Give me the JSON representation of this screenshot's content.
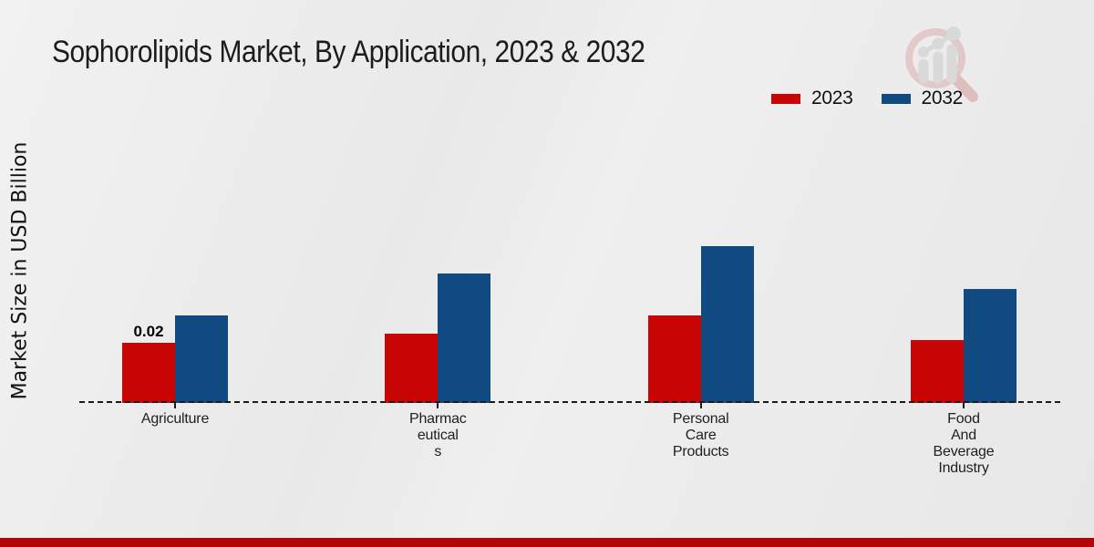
{
  "title": "Sophorolipids Market, By Application, 2023 & 2032",
  "y_axis_title": "Market Size in USD Billion",
  "legend": {
    "items": [
      {
        "label": "2023",
        "color": "#c80606"
      },
      {
        "label": "2032",
        "color": "#114a80"
      }
    ]
  },
  "logo_icon": "magnifier-growth-chart-watermark",
  "footer_color": "#b30707",
  "chart_data": {
    "type": "bar",
    "title": "Sophorolipids Market, By Application, 2023 & 2032",
    "xlabel": "",
    "ylabel": "Market Size in USD Billion",
    "categories": [
      "Agriculture",
      "Pharmaceuticals",
      "Personal Care Products",
      "Food And Beverage Industry"
    ],
    "category_label_lines": [
      [
        "Agriculture"
      ],
      [
        "Pharmac",
        "eutical",
        "s"
      ],
      [
        "Personal",
        "Care",
        "Products"
      ],
      [
        "Food",
        "And",
        "Beverage",
        "Industry"
      ]
    ],
    "series": [
      {
        "name": "2023",
        "color": "#c80606",
        "values": [
          0.02,
          0.023,
          0.029,
          0.021
        ]
      },
      {
        "name": "2032",
        "color": "#114a80",
        "values": [
          0.029,
          0.043,
          0.052,
          0.038
        ]
      }
    ],
    "data_labels": [
      {
        "series": "2023",
        "category": "Agriculture",
        "text": "0.02"
      }
    ],
    "ylim": [
      0,
      0.06
    ],
    "y_axis_tick_labels_visible": false,
    "gridlines": false,
    "baseline_style": "dashed",
    "legend_position": "top-right"
  }
}
